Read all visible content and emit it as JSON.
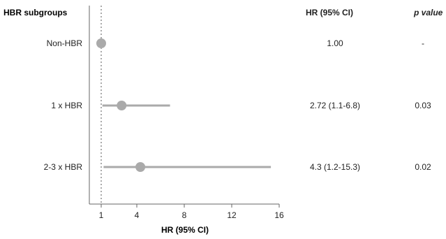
{
  "chart_data": {
    "type": "forest",
    "title": "",
    "row_header": "HBR subgroups",
    "xlabel": "HR (95% CI)",
    "xlim": [
      0,
      16
    ],
    "xticks": [
      1,
      4,
      8,
      12,
      16
    ],
    "reference_line": 1,
    "columns": {
      "hr_header": "HR (95% CI)",
      "p_header": "p value"
    },
    "rows": [
      {
        "label": "Non-HBR",
        "hr": 1.0,
        "lo": null,
        "hi": null,
        "hr_text": "1.00",
        "p_text": "-"
      },
      {
        "label": "1 x HBR",
        "hr": 2.72,
        "lo": 1.1,
        "hi": 6.8,
        "hr_text": "2.72 (1.1-6.8)",
        "p_text": "0.03"
      },
      {
        "label": "2-3 x HBR",
        "hr": 4.3,
        "lo": 1.2,
        "hi": 15.3,
        "hr_text": "4.3 (1.2-15.3)",
        "p_text": "0.02"
      }
    ],
    "colors": {
      "marker": "#aaaaaa",
      "line": "#aaaaaa",
      "axis": "#666666"
    }
  }
}
